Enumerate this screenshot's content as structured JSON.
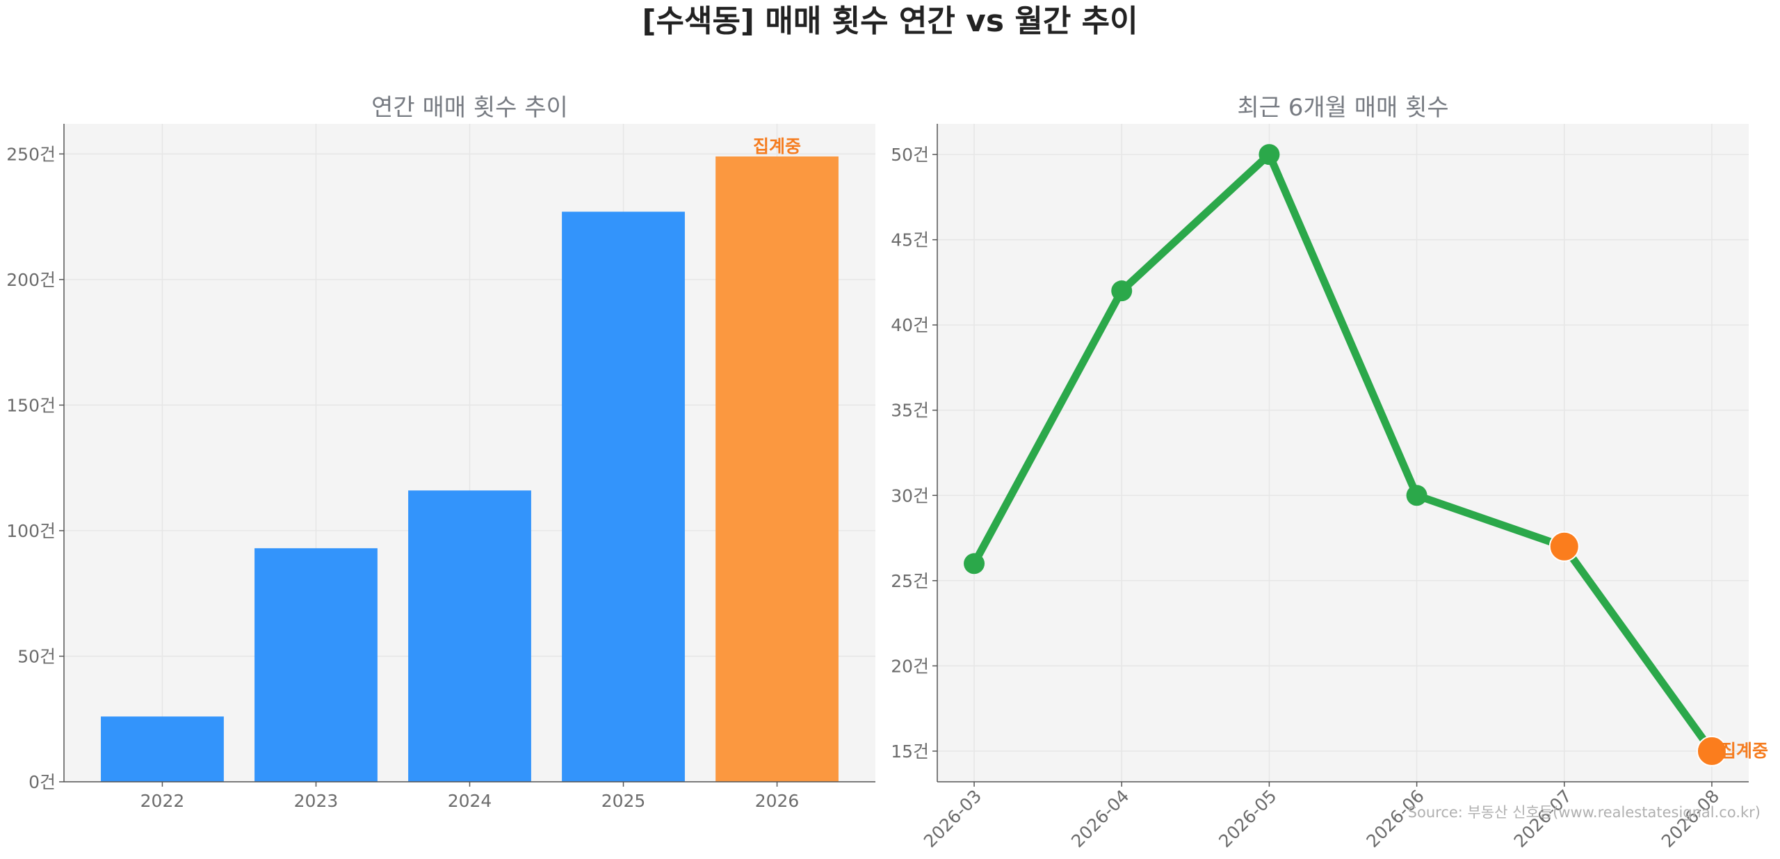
{
  "title": "[수색동] 매매 횟수 연간 vs 월간 추이",
  "source": "Source: 부동산 신호등(www.realestatesignal.co.kr)",
  "colors": {
    "bar": "#3394fb",
    "bar_current": "#fb9840",
    "line": "#2ba84a",
    "marker_current": "#fb7d1d",
    "label": "#f57c1f",
    "panel_bg": "#f4f4f4",
    "grid": "#e6e6e6"
  },
  "chart_data": [
    {
      "type": "bar",
      "title": "연간 매매 횟수 추이",
      "categories": [
        "2022",
        "2023",
        "2024",
        "2025",
        "2026"
      ],
      "values": [
        26,
        93,
        116,
        227,
        249
      ],
      "highlight_index": 4,
      "annotation": {
        "index": 4,
        "text": "집계중"
      },
      "ylim": [
        0,
        262
      ],
      "yticks": [
        0,
        50,
        100,
        150,
        200,
        250
      ],
      "ytick_labels": [
        "0건",
        "50건",
        "100건",
        "150건",
        "200건",
        "250건"
      ],
      "grid": true
    },
    {
      "type": "line",
      "title": "최근 6개월 매매 횟수",
      "x": [
        "2026-03",
        "2026-04",
        "2026-05",
        "2026-06",
        "2026-07",
        "2026-08"
      ],
      "values": [
        26,
        42,
        50,
        30,
        27,
        15
      ],
      "highlight_indices": [
        4,
        5
      ],
      "annotation": {
        "index": 5,
        "text": "집계중"
      },
      "ylim": [
        13.2,
        51.8
      ],
      "yticks": [
        15,
        20,
        25,
        30,
        35,
        40,
        45,
        50
      ],
      "ytick_labels": [
        "15건",
        "20건",
        "25건",
        "30건",
        "35건",
        "40건",
        "45건",
        "50건"
      ],
      "grid": true
    }
  ]
}
